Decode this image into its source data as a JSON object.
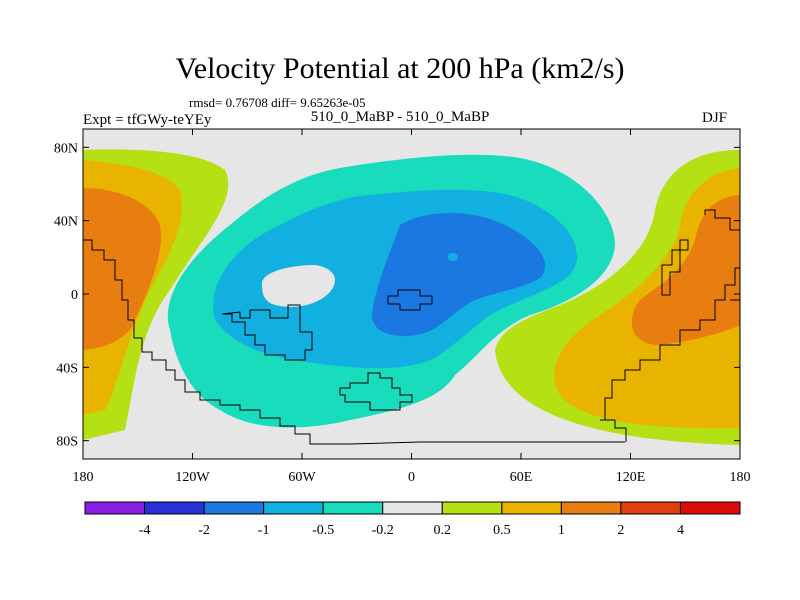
{
  "title": "Velocity Potential at 200 hPa (km2/s)",
  "stats": "rmsd= 0.76708 diff= 9.65263e-05",
  "left_label": "Expt = tfGWy-teYEy",
  "center_label": "510_0_MaBP - 510_0_MaBP",
  "season": "DJF",
  "colors": {
    "missing_gray": "#e6e6e6",
    "levels": [
      "#8a1ee6",
      "#2b30d8",
      "#1a78e0",
      "#12b0e0",
      "#18dcbc",
      "#e6e6e6",
      "#b4e014",
      "#e8b400",
      "#e87d10",
      "#e04010",
      "#e00a0a"
    ]
  },
  "chart_data": {
    "type": "heatmap",
    "title": "Velocity Potential at 200 hPa (km2/s)",
    "projection": "cylindrical equidistant",
    "xlim": [
      -180,
      180
    ],
    "ylim": [
      -90,
      90
    ],
    "x_ticks": [
      -180,
      -120,
      -60,
      0,
      60,
      120,
      180
    ],
    "x_tick_labels": [
      "180",
      "120W",
      "60W",
      "0",
      "60E",
      "120E",
      "180"
    ],
    "y_ticks": [
      80,
      40,
      0,
      -40,
      -80
    ],
    "y_tick_labels": [
      "80N",
      "40N",
      "0",
      "40S",
      "80S"
    ],
    "colorbar": {
      "levels": [
        -4,
        -2,
        -1,
        -0.5,
        -0.2,
        0.2,
        0.5,
        1,
        2,
        4
      ],
      "labels": [
        "-4",
        "-2",
        "-1",
        "-0.5",
        "-0.2",
        "0.2",
        "0.5",
        "1",
        "2",
        "4"
      ]
    },
    "features": [
      {
        "name": "negative-center-africa",
        "lon": 20,
        "lat": 8,
        "min_level": -2
      },
      {
        "name": "positive-center-west-pacific",
        "lon": 160,
        "lat": 10,
        "max_level": 2
      },
      {
        "name": "positive-center-dateline-west",
        "lon": -170,
        "lat": 10,
        "max_level": 2
      }
    ]
  }
}
